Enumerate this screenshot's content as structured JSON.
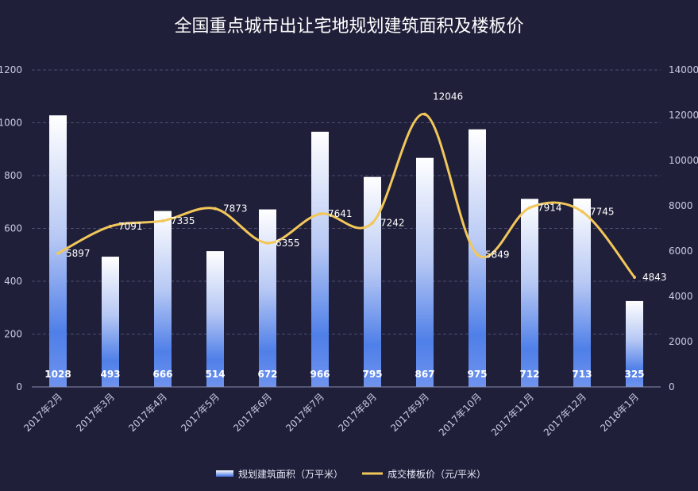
{
  "chart_data": {
    "type": "bar",
    "title": "全国重点城市出让宅地规划建筑面积及楼板价",
    "categories": [
      "2017年2月",
      "2017年3月",
      "2017年4月",
      "2017年5月",
      "2017年6月",
      "2017年7月",
      "2017年8月",
      "2017年9月",
      "2017年10月",
      "2017年11月",
      "2017年12月",
      "2018年1月"
    ],
    "series": [
      {
        "name": "规划建筑面积（万平米）",
        "type": "bar",
        "axis": "left",
        "values": [
          1028,
          493,
          666,
          514,
          672,
          966,
          795,
          867,
          975,
          712,
          713,
          325
        ]
      },
      {
        "name": "成交楼板价（元/平米）",
        "type": "line",
        "axis": "right",
        "values": [
          5897,
          7091,
          7335,
          7873,
          6355,
          7641,
          7242,
          12046,
          5849,
          7914,
          7745,
          4843
        ]
      }
    ],
    "y_left": {
      "ylim": [
        0,
        1200
      ],
      "ticks": [
        0,
        200,
        400,
        600,
        800,
        1000,
        1200
      ]
    },
    "y_right": {
      "ylim": [
        0,
        14000
      ],
      "ticks": [
        0,
        2000,
        4000,
        6000,
        8000,
        10000,
        12000,
        14000
      ]
    },
    "xlabel": "",
    "ylabel": "",
    "grid": true,
    "legend": "bottom-center",
    "colors": {
      "background": "#1f1f3a",
      "bar_top": "#ffffff",
      "bar_bottom": "#3d6fe0",
      "line": "#f2c75a",
      "grid": "#4a4c6e",
      "axis_text": "#c9cbe0"
    }
  }
}
